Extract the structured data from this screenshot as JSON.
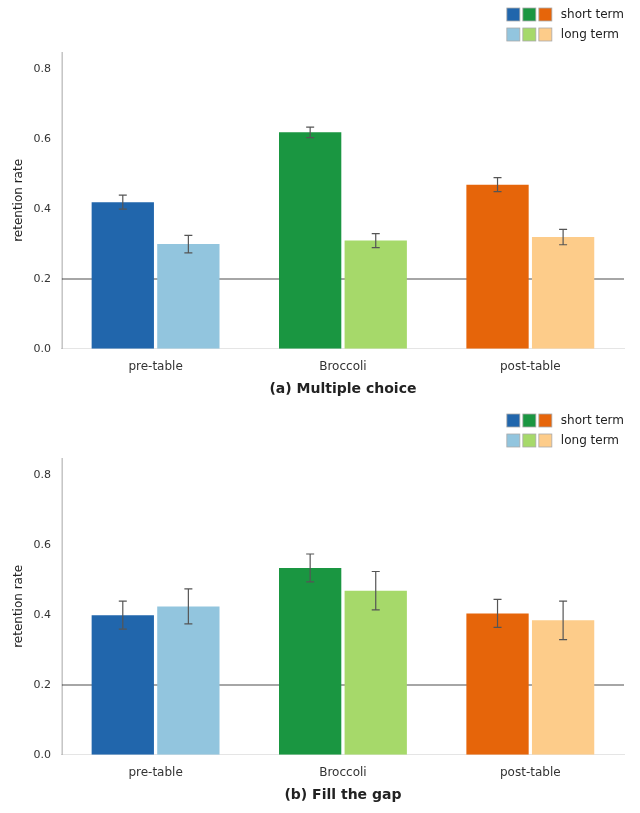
{
  "chart_data": [
    {
      "type": "bar",
      "xlabel": "(a) Multiple choice",
      "ylabel": "retention rate",
      "categories": [
        "pre-table",
        "Broccoli",
        "post-table"
      ],
      "series": [
        {
          "name": "short term",
          "colors": [
            "#2166ac",
            "#1a9641",
            "#e6650a"
          ],
          "values": [
            0.42,
            0.62,
            0.47
          ],
          "errors": [
            0.02,
            0.015,
            0.02
          ]
        },
        {
          "name": "long term",
          "colors": [
            "#92c5de",
            "#a6d96a",
            "#fdcc8a"
          ],
          "values": [
            0.3,
            0.31,
            0.32
          ],
          "errors": [
            0.025,
            0.02,
            0.022
          ]
        }
      ],
      "hline": 0.2,
      "ylim": [
        0.0,
        0.85
      ],
      "yticks": [
        {
          "value": 0.0,
          "label": "0.0"
        },
        0.2,
        0.4,
        0.6,
        0.8
      ],
      "grid": false,
      "legend": "upper right"
    },
    {
      "type": "bar",
      "xlabel": "(b) Fill the gap",
      "ylabel": "retention rate",
      "categories": [
        "pre-table",
        "Broccoli",
        "post-table"
      ],
      "series": [
        {
          "name": "short term",
          "colors": [
            "#2166ac",
            "#1a9641",
            "#e6650a"
          ],
          "values": [
            0.4,
            0.535,
            0.405
          ],
          "errors": [
            0.04,
            0.04,
            0.04
          ]
        },
        {
          "name": "long term",
          "colors": [
            "#92c5de",
            "#a6d96a",
            "#fdcc8a"
          ],
          "values": [
            0.425,
            0.47,
            0.385
          ],
          "errors": [
            0.05,
            0.055,
            0.055
          ]
        }
      ],
      "hline": 0.2,
      "ylim": [
        0.0,
        0.85
      ],
      "yticks": [
        {
          "value": 0.0,
          "label": "0.0"
        },
        0.2,
        0.4,
        0.6,
        0.8
      ],
      "grid": false,
      "legend": "upper right"
    }
  ]
}
